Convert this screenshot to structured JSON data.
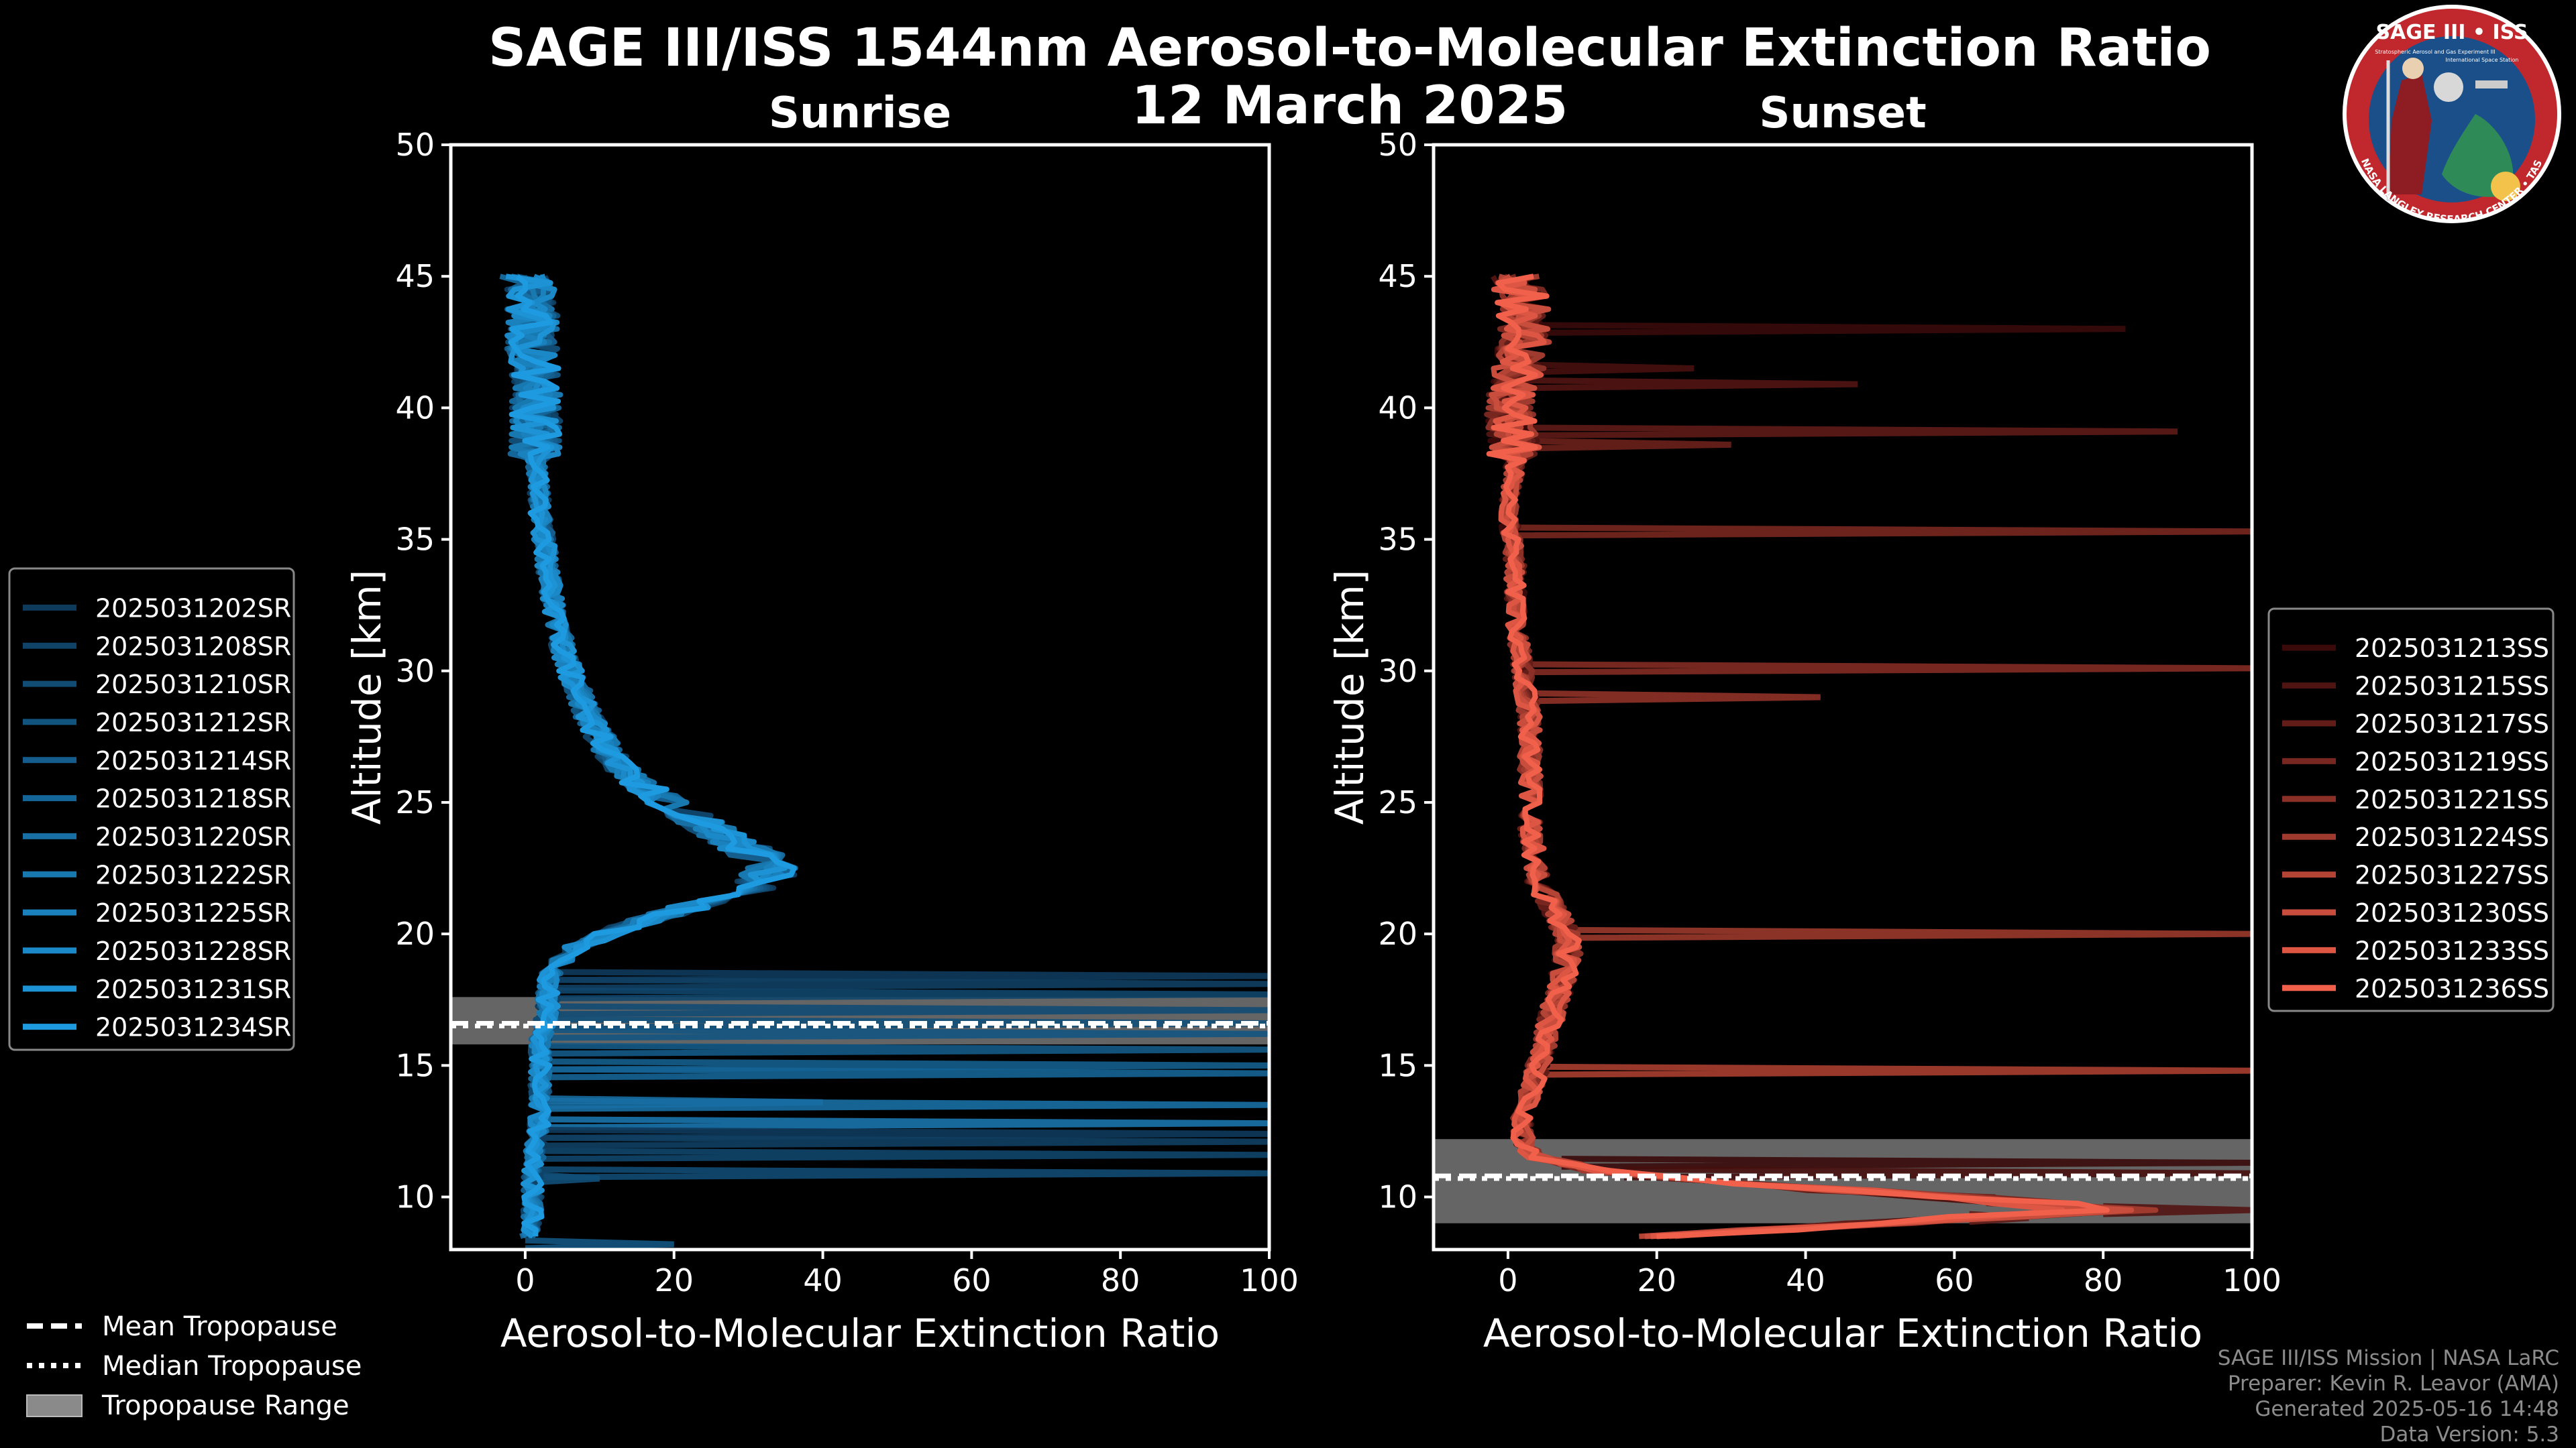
{
  "page": {
    "title_line1": "SAGE III/ISS 1544nm Aerosol-to-Molecular Extinction Ratio",
    "title_line2": "12 March 2025"
  },
  "logo": {
    "text_top": "SAGE III • ISS",
    "text_sub1": "Stratospheric Aerosol and Gas Experiment III",
    "text_sub2": "International Space Station",
    "ring_text": "BALL • NASA LANGLEY RESEARCH CENTER • TAS-I • ESA",
    "ring_color": "#c0282d",
    "inner_color": "#1a4f8a"
  },
  "footer": {
    "line1": "SAGE III/ISS Mission | NASA LaRC",
    "line2": "Preparer: Kevin R. Leavor (AMA)",
    "line3": "Generated 2025-05-16 14:48",
    "line4": "Data Version: 5.3"
  },
  "tropopause_legend": {
    "mean": "Mean Tropopause",
    "median": "Median Tropopause",
    "range": "Tropopause Range"
  },
  "chart_data": [
    {
      "type": "line",
      "title": "Sunrise",
      "xlabel": "Aerosol-to-Molecular Extinction Ratio",
      "ylabel": "Altitude [km]",
      "xlim": [
        -10,
        100
      ],
      "ylim": [
        8,
        50
      ],
      "xticks": [
        0,
        20,
        40,
        60,
        80,
        100
      ],
      "yticks": [
        10,
        15,
        20,
        25,
        30,
        35,
        40,
        45
      ],
      "legend_position": "left",
      "series_color_start": "#0e3a5c",
      "series_color_end": "#1e9be0",
      "series": [
        {
          "name": "2025031202SR"
        },
        {
          "name": "2025031208SR"
        },
        {
          "name": "2025031210SR"
        },
        {
          "name": "2025031212SR"
        },
        {
          "name": "2025031214SR"
        },
        {
          "name": "2025031218SR"
        },
        {
          "name": "2025031220SR"
        },
        {
          "name": "2025031222SR"
        },
        {
          "name": "2025031225SR"
        },
        {
          "name": "2025031228SR"
        },
        {
          "name": "2025031231SR"
        },
        {
          "name": "2025031234SR"
        }
      ],
      "mean_profile": {
        "alt": [
          45,
          44,
          42,
          40,
          38,
          36,
          34,
          32,
          30,
          28,
          27,
          26,
          25,
          24,
          23.5,
          23,
          22.5,
          22,
          21.5,
          21,
          20.5,
          20,
          19.5,
          19,
          18.5,
          18,
          17.5,
          17,
          16.5,
          16,
          15,
          14,
          13,
          12,
          11,
          10,
          9,
          8.3
        ],
        "ratio": [
          0,
          1,
          1,
          1.5,
          1.5,
          2,
          3,
          4,
          6,
          9,
          11,
          14,
          19,
          25,
          28,
          31,
          33,
          32,
          28,
          22,
          16,
          11,
          7,
          5,
          3.5,
          3,
          3,
          3,
          2.5,
          2,
          2,
          2,
          2,
          1.5,
          1,
          1,
          1,
          0
        ]
      },
      "spikes": [
        {
          "alt": 18.4,
          "ratio": 100
        },
        {
          "alt": 18.1,
          "ratio": 100
        },
        {
          "alt": 17.7,
          "ratio": 100
        },
        {
          "alt": 17.1,
          "ratio": 100
        },
        {
          "alt": 16.6,
          "ratio": 100
        },
        {
          "alt": 16.2,
          "ratio": 100
        },
        {
          "alt": 15.6,
          "ratio": 100
        },
        {
          "alt": 15.0,
          "ratio": 100
        },
        {
          "alt": 14.7,
          "ratio": 100
        },
        {
          "alt": 13.6,
          "ratio": 40
        },
        {
          "alt": 13.5,
          "ratio": 100
        },
        {
          "alt": 12.8,
          "ratio": 100
        },
        {
          "alt": 12.4,
          "ratio": 100
        },
        {
          "alt": 12.1,
          "ratio": 100
        },
        {
          "alt": 11.6,
          "ratio": 100
        },
        {
          "alt": 10.9,
          "ratio": 100
        },
        {
          "alt": 10.7,
          "ratio": 10
        },
        {
          "alt": 8.2,
          "ratio": 20
        }
      ],
      "tropopause": {
        "mean": 16.6,
        "median": 16.5,
        "range": [
          15.8,
          17.6
        ]
      }
    },
    {
      "type": "line",
      "title": "Sunset",
      "xlabel": "Aerosol-to-Molecular Extinction Ratio",
      "ylabel": "Altitude [km]",
      "xlim": [
        -10,
        100
      ],
      "ylim": [
        8,
        50
      ],
      "xticks": [
        0,
        20,
        40,
        60,
        80,
        100
      ],
      "yticks": [
        10,
        15,
        20,
        25,
        30,
        35,
        40,
        45
      ],
      "legend_position": "right",
      "series_color_start": "#3a0a0a",
      "series_color_end": "#f0604a",
      "series": [
        {
          "name": "2025031213SS"
        },
        {
          "name": "2025031215SS"
        },
        {
          "name": "2025031217SS"
        },
        {
          "name": "2025031219SS"
        },
        {
          "name": "2025031221SS"
        },
        {
          "name": "2025031224SS"
        },
        {
          "name": "2025031227SS"
        },
        {
          "name": "2025031230SS"
        },
        {
          "name": "2025031233SS"
        },
        {
          "name": "2025031236SS"
        }
      ],
      "mean_profile": {
        "alt": [
          45,
          44,
          42,
          40,
          38,
          36,
          34,
          32,
          30,
          28,
          26,
          24,
          22,
          21,
          20,
          19,
          18,
          17,
          16,
          15,
          14,
          13,
          12,
          11.5,
          11,
          10.5,
          10,
          9.5,
          9,
          8.5
        ],
        "ratio": [
          1,
          2,
          2,
          0,
          1,
          0,
          1,
          1,
          2,
          3,
          3,
          3,
          4,
          6,
          8,
          8,
          7,
          6,
          5,
          4,
          3,
          2,
          2,
          4,
          12,
          30,
          60,
          80,
          50,
          20
        ]
      },
      "spikes": [
        {
          "alt": 43.0,
          "ratio": 83
        },
        {
          "alt": 41.5,
          "ratio": 25
        },
        {
          "alt": 40.9,
          "ratio": 47
        },
        {
          "alt": 39.1,
          "ratio": 90
        },
        {
          "alt": 38.6,
          "ratio": 30
        },
        {
          "alt": 35.3,
          "ratio": 100
        },
        {
          "alt": 30.1,
          "ratio": 100
        },
        {
          "alt": 29.0,
          "ratio": 42
        },
        {
          "alt": 20.0,
          "ratio": 100
        },
        {
          "alt": 14.8,
          "ratio": 100
        },
        {
          "alt": 11.3,
          "ratio": 100
        },
        {
          "alt": 10.9,
          "ratio": 100
        },
        {
          "alt": 9.5,
          "ratio": 100
        },
        {
          "alt": 9.2,
          "ratio": 70
        }
      ],
      "tropopause": {
        "mean": 10.8,
        "median": 10.7,
        "range": [
          9.0,
          12.2
        ]
      }
    }
  ]
}
